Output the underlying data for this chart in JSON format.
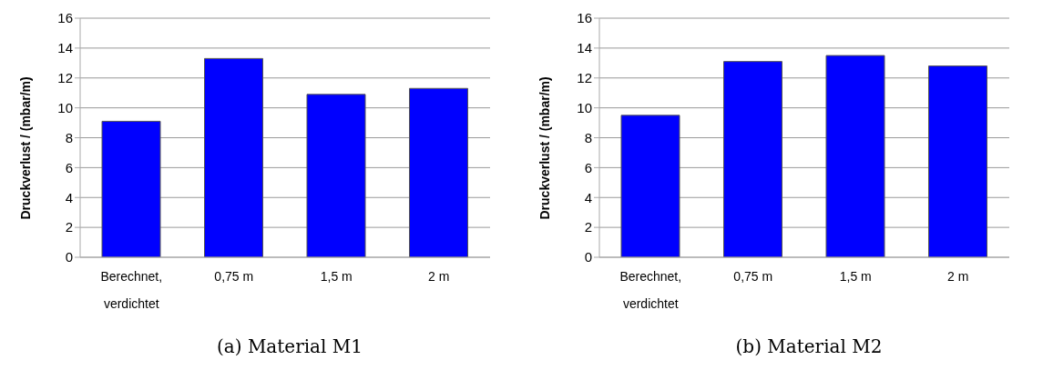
{
  "chart_data": [
    {
      "type": "bar",
      "ylabel": "Druckverlust / (mbar/m)",
      "categories": [
        "Berechnet, verdichtet",
        "0,75 m",
        "1,5 m",
        "2 m"
      ],
      "values": [
        9.1,
        13.3,
        10.9,
        11.3
      ],
      "color": "#0000ff",
      "ylim": [
        0,
        16
      ],
      "yticks": [
        0,
        2,
        4,
        6,
        8,
        10,
        12,
        14,
        16
      ],
      "grid": "y",
      "annotations": [
        "(a) Material M1"
      ]
    },
    {
      "type": "bar",
      "ylabel": "Druckverlust / (mbar/m)",
      "categories": [
        "Berechnet, verdichtet",
        "0,75 m",
        "1,5 m",
        "2 m"
      ],
      "values": [
        9.5,
        13.1,
        13.5,
        12.8
      ],
      "color": "#0000ff",
      "ylim": [
        0,
        16
      ],
      "yticks": [
        0,
        2,
        4,
        6,
        8,
        10,
        12,
        14,
        16
      ],
      "grid": "y",
      "annotations": [
        "(b) Material M2"
      ]
    }
  ]
}
